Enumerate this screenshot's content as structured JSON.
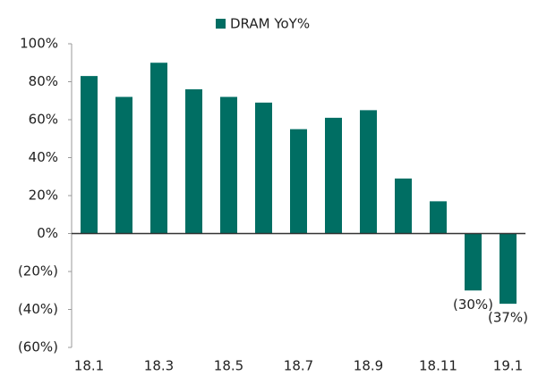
{
  "chart_data": {
    "type": "bar",
    "legend": "DRAM YoY%",
    "categories": [
      "18.1",
      null,
      "18.3",
      null,
      "18.5",
      null,
      "18.7",
      null,
      "18.9",
      null,
      "18.11",
      null,
      "19.1"
    ],
    "values": [
      83,
      72,
      90,
      76,
      72,
      69,
      55,
      61,
      65,
      29,
      17,
      -30,
      -37
    ],
    "value_labels": [
      null,
      null,
      null,
      null,
      null,
      null,
      null,
      null,
      null,
      null,
      null,
      "(30%)",
      "(37%)"
    ],
    "color": "#006e63",
    "ylim": [
      -60,
      100
    ],
    "yticks": [
      {
        "value": -60,
        "label": "(60%)"
      },
      {
        "value": -40,
        "label": "(40%)"
      },
      {
        "value": -20,
        "label": "(20%)"
      },
      {
        "value": 0,
        "label": "0%"
      },
      {
        "value": 20,
        "label": "20%"
      },
      {
        "value": 40,
        "label": "40%"
      },
      {
        "value": 60,
        "label": "60%"
      },
      {
        "value": 80,
        "label": "80%"
      },
      {
        "value": 100,
        "label": "100%"
      }
    ],
    "legend_position": "top"
  }
}
